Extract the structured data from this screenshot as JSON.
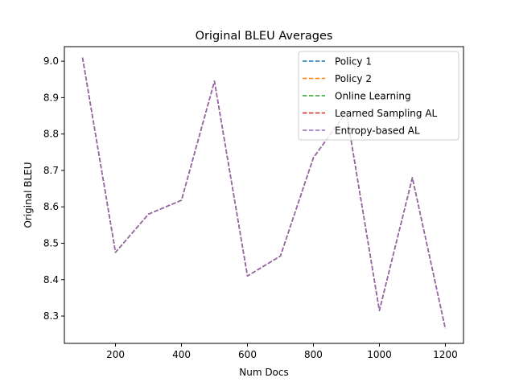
{
  "chart_data": {
    "type": "line",
    "title": "Original BLEU Averages",
    "xlabel": "Num Docs",
    "ylabel": "Original BLEU",
    "xlim": [
      45,
      1255
    ],
    "ylim": [
      8.225,
      9.04
    ],
    "xticks": [
      200,
      400,
      600,
      800,
      1000,
      1200
    ],
    "yticks": [
      8.3,
      8.4,
      8.5,
      8.6,
      8.7,
      8.8,
      8.9,
      9.0
    ],
    "ytick_labels": [
      "8.3",
      "8.4",
      "8.5",
      "8.6",
      "8.7",
      "8.8",
      "8.9",
      "9.0"
    ],
    "grid": false,
    "legend_position": "top-right",
    "line_style": "dashed",
    "x": [
      100,
      200,
      300,
      400,
      500,
      600,
      700,
      800,
      900,
      1000,
      1100,
      1200
    ],
    "series": [
      {
        "name": "Policy 1",
        "color": "#1f77b4",
        "values": [
          9.01,
          8.475,
          8.58,
          8.618,
          8.945,
          8.41,
          8.465,
          8.735,
          8.86,
          8.315,
          8.68,
          8.265
        ]
      },
      {
        "name": "Policy 2",
        "color": "#ff7f0e",
        "values": [
          9.01,
          8.475,
          8.58,
          8.618,
          8.945,
          8.41,
          8.465,
          8.735,
          8.86,
          8.315,
          8.68,
          8.265
        ]
      },
      {
        "name": "Online Learning",
        "color": "#2ca02c",
        "values": [
          9.01,
          8.475,
          8.58,
          8.618,
          8.945,
          8.41,
          8.465,
          8.735,
          8.86,
          8.315,
          8.68,
          8.265
        ]
      },
      {
        "name": "Learned Sampling AL",
        "color": "#d62728",
        "values": [
          9.01,
          8.475,
          8.58,
          8.618,
          8.945,
          8.41,
          8.465,
          8.735,
          8.86,
          8.315,
          8.68,
          8.265
        ]
      },
      {
        "name": "Entropy-based AL",
        "color": "#9467bd",
        "values": [
          9.01,
          8.475,
          8.58,
          8.618,
          8.945,
          8.41,
          8.465,
          8.735,
          8.86,
          8.315,
          8.68,
          8.265
        ]
      }
    ]
  }
}
